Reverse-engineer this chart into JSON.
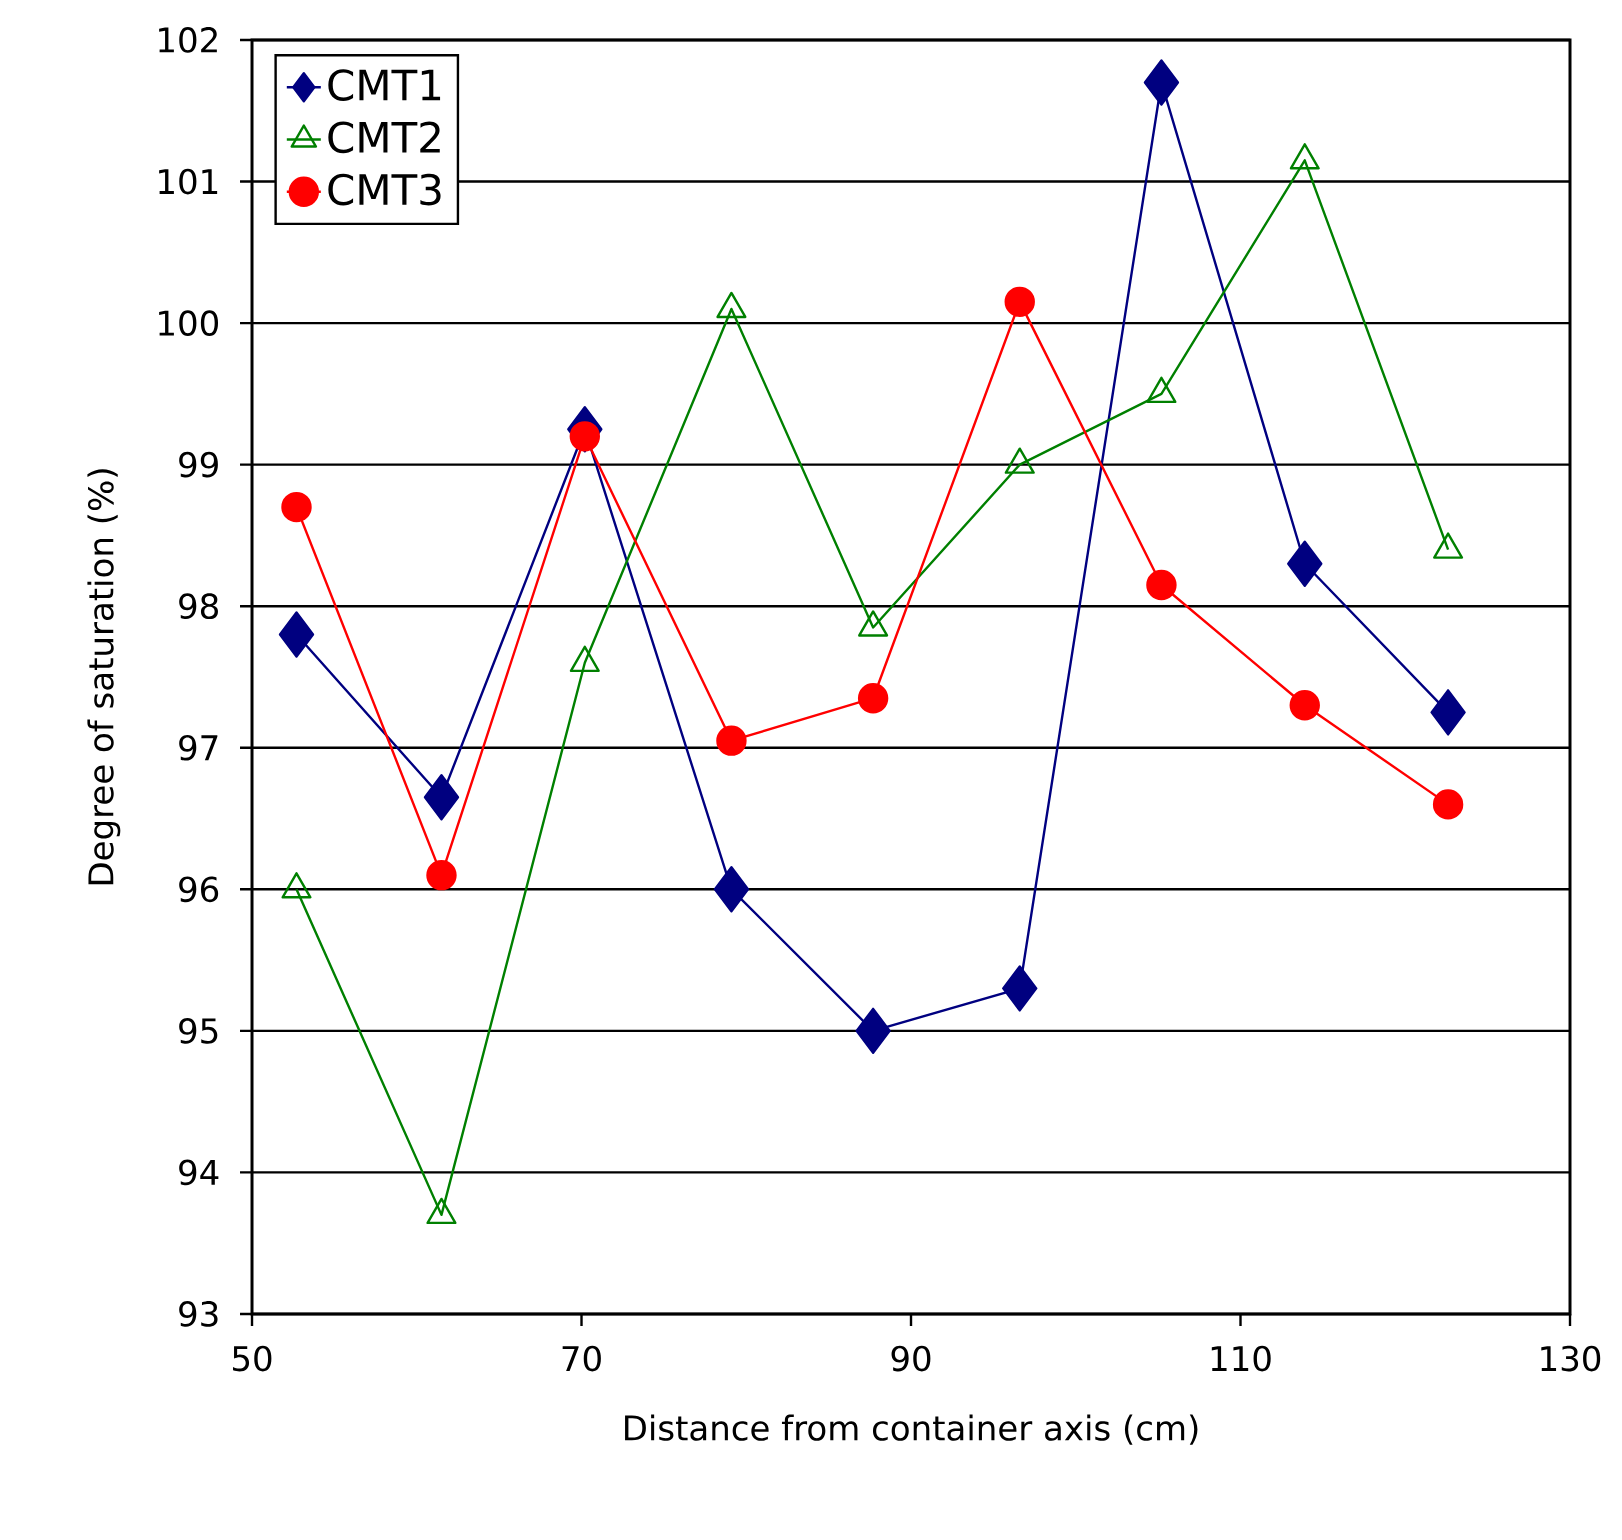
{
  "chart_data": {
    "type": "line",
    "xlabel": "Distance from container axis (cm)",
    "ylabel": "Degree of saturation (%)",
    "x": [
      52.7,
      61.5,
      70.2,
      79.1,
      87.7,
      96.6,
      105.2,
      113.9,
      122.6
    ],
    "series": [
      {
        "name": "CMT1",
        "color": "#000080",
        "marker": "diamond",
        "values": [
          97.8,
          96.65,
          99.25,
          96.0,
          95.0,
          95.3,
          101.7,
          98.3,
          97.25
        ]
      },
      {
        "name": "CMT2",
        "color": "#008000",
        "marker": "triangle",
        "values": [
          96.0,
          93.7,
          97.6,
          100.1,
          97.85,
          99.0,
          99.5,
          101.15,
          98.4
        ]
      },
      {
        "name": "CMT3",
        "color": "#ff0000",
        "marker": "circle",
        "values": [
          98.7,
          96.1,
          99.2,
          97.05,
          97.35,
          100.15,
          98.15,
          97.3,
          96.6
        ]
      }
    ],
    "xlim": [
      50,
      130
    ],
    "xticks": [
      50,
      70,
      90,
      110,
      130
    ],
    "ylim": [
      93,
      102
    ],
    "yticks": [
      93,
      94,
      95,
      96,
      97,
      98,
      99,
      100,
      101,
      102
    ],
    "grid": "y",
    "legend": "top left",
    "line_style": "solid"
  }
}
